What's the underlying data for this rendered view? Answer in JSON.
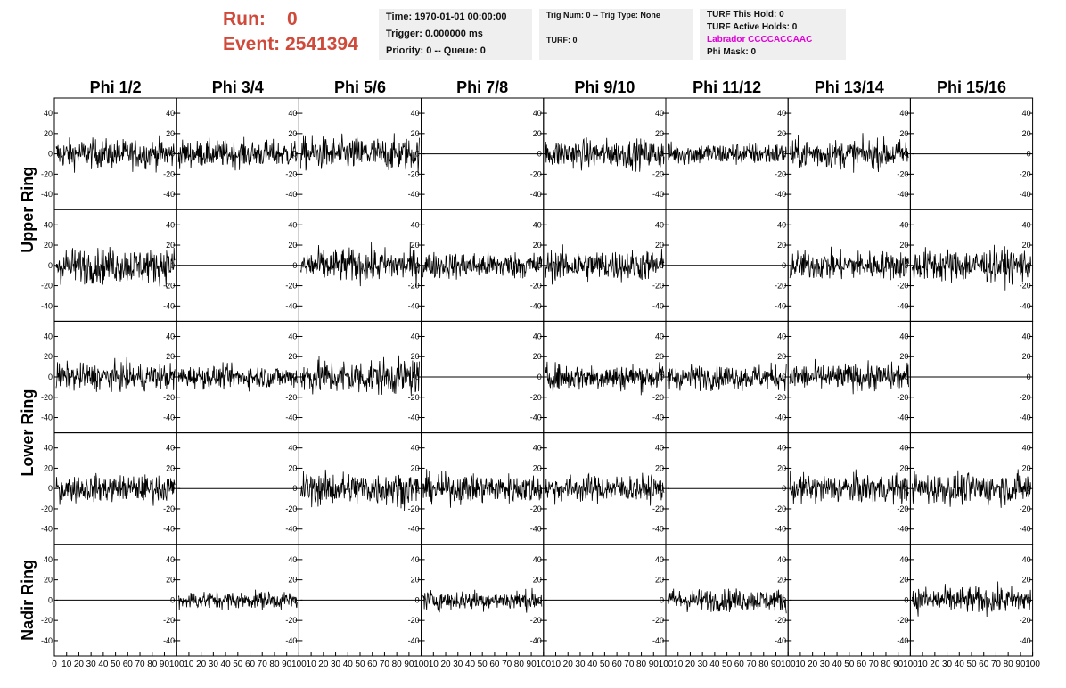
{
  "header": {
    "run_label": "Run:",
    "run_value": "0",
    "event_label": "Event:",
    "event_value": "2541394"
  },
  "info_time": {
    "time": "Time: 1970-01-01 00:00:00",
    "trigger": "Trigger: 0.000000 ms",
    "priority": "Priority: 0 -- Queue: 0"
  },
  "info_trig": {
    "trig": "Trig Num: 0 -- Trig Type: None",
    "turf": "TURF: 0"
  },
  "info_turf": {
    "hold": "TURF This Hold: 0",
    "active": "TURF Active Holds: 0",
    "labrador": "Labrador CCCCACCAAC",
    "phimask": "Phi Mask: 0"
  },
  "colors": {
    "accent": "#d04a3c",
    "labrador": "#e000d8",
    "info_bg": "#efefef",
    "trace": "#000000"
  },
  "chart_data": {
    "type": "line",
    "columns": [
      "Phi 1/2",
      "Phi 3/4",
      "Phi 5/6",
      "Phi 7/8",
      "Phi 9/10",
      "Phi 11/12",
      "Phi 13/14",
      "Phi 15/16"
    ],
    "ring_labels": [
      {
        "label": "Upper Ring",
        "rows": [
          0,
          1
        ]
      },
      {
        "label": "Lower Ring",
        "rows": [
          2,
          3
        ]
      },
      {
        "label": "Nadir Ring",
        "rows": [
          4,
          4
        ]
      }
    ],
    "xlim": [
      0,
      100
    ],
    "ylim": [
      -55,
      55
    ],
    "y_ticks": [
      -40,
      -20,
      0,
      20,
      40
    ],
    "x_tick_labels": [
      "0",
      "10",
      "20",
      "30",
      "40",
      "50",
      "60",
      "70",
      "80",
      "90",
      "100"
    ],
    "n_samples": 260,
    "grid": false,
    "panels": [
      {
        "row": 0,
        "col": 0,
        "amplitude": 13
      },
      {
        "row": 0,
        "col": 1,
        "amplitude": 12
      },
      {
        "row": 0,
        "col": 2,
        "amplitude": 15
      },
      {
        "row": 0,
        "col": 3,
        "amplitude": 0
      },
      {
        "row": 0,
        "col": 4,
        "amplitude": 13
      },
      {
        "row": 0,
        "col": 5,
        "amplitude": 10
      },
      {
        "row": 0,
        "col": 6,
        "amplitude": 13
      },
      {
        "row": 0,
        "col": 7,
        "amplitude": 0
      },
      {
        "row": 1,
        "col": 0,
        "amplitude": 16
      },
      {
        "row": 1,
        "col": 1,
        "amplitude": 0
      },
      {
        "row": 1,
        "col": 2,
        "amplitude": 15
      },
      {
        "row": 1,
        "col": 3,
        "amplitude": 12
      },
      {
        "row": 1,
        "col": 4,
        "amplitude": 14
      },
      {
        "row": 1,
        "col": 5,
        "amplitude": 0
      },
      {
        "row": 1,
        "col": 6,
        "amplitude": 13
      },
      {
        "row": 1,
        "col": 7,
        "amplitude": 15
      },
      {
        "row": 2,
        "col": 0,
        "amplitude": 12
      },
      {
        "row": 2,
        "col": 1,
        "amplitude": 10
      },
      {
        "row": 2,
        "col": 2,
        "amplitude": 16
      },
      {
        "row": 2,
        "col": 3,
        "amplitude": 0
      },
      {
        "row": 2,
        "col": 4,
        "amplitude": 12
      },
      {
        "row": 2,
        "col": 5,
        "amplitude": 11
      },
      {
        "row": 2,
        "col": 6,
        "amplitude": 12
      },
      {
        "row": 2,
        "col": 7,
        "amplitude": 0
      },
      {
        "row": 3,
        "col": 0,
        "amplitude": 12
      },
      {
        "row": 3,
        "col": 1,
        "amplitude": 0
      },
      {
        "row": 3,
        "col": 2,
        "amplitude": 15
      },
      {
        "row": 3,
        "col": 3,
        "amplitude": 13
      },
      {
        "row": 3,
        "col": 4,
        "amplitude": 12
      },
      {
        "row": 3,
        "col": 5,
        "amplitude": 0
      },
      {
        "row": 3,
        "col": 6,
        "amplitude": 13
      },
      {
        "row": 3,
        "col": 7,
        "amplitude": 14
      },
      {
        "row": 4,
        "col": 0,
        "amplitude": 0
      },
      {
        "row": 4,
        "col": 1,
        "amplitude": 8
      },
      {
        "row": 4,
        "col": 2,
        "amplitude": 0
      },
      {
        "row": 4,
        "col": 3,
        "amplitude": 9
      },
      {
        "row": 4,
        "col": 4,
        "amplitude": 0
      },
      {
        "row": 4,
        "col": 5,
        "amplitude": 10
      },
      {
        "row": 4,
        "col": 6,
        "amplitude": 0
      },
      {
        "row": 4,
        "col": 7,
        "amplitude": 12
      }
    ]
  }
}
